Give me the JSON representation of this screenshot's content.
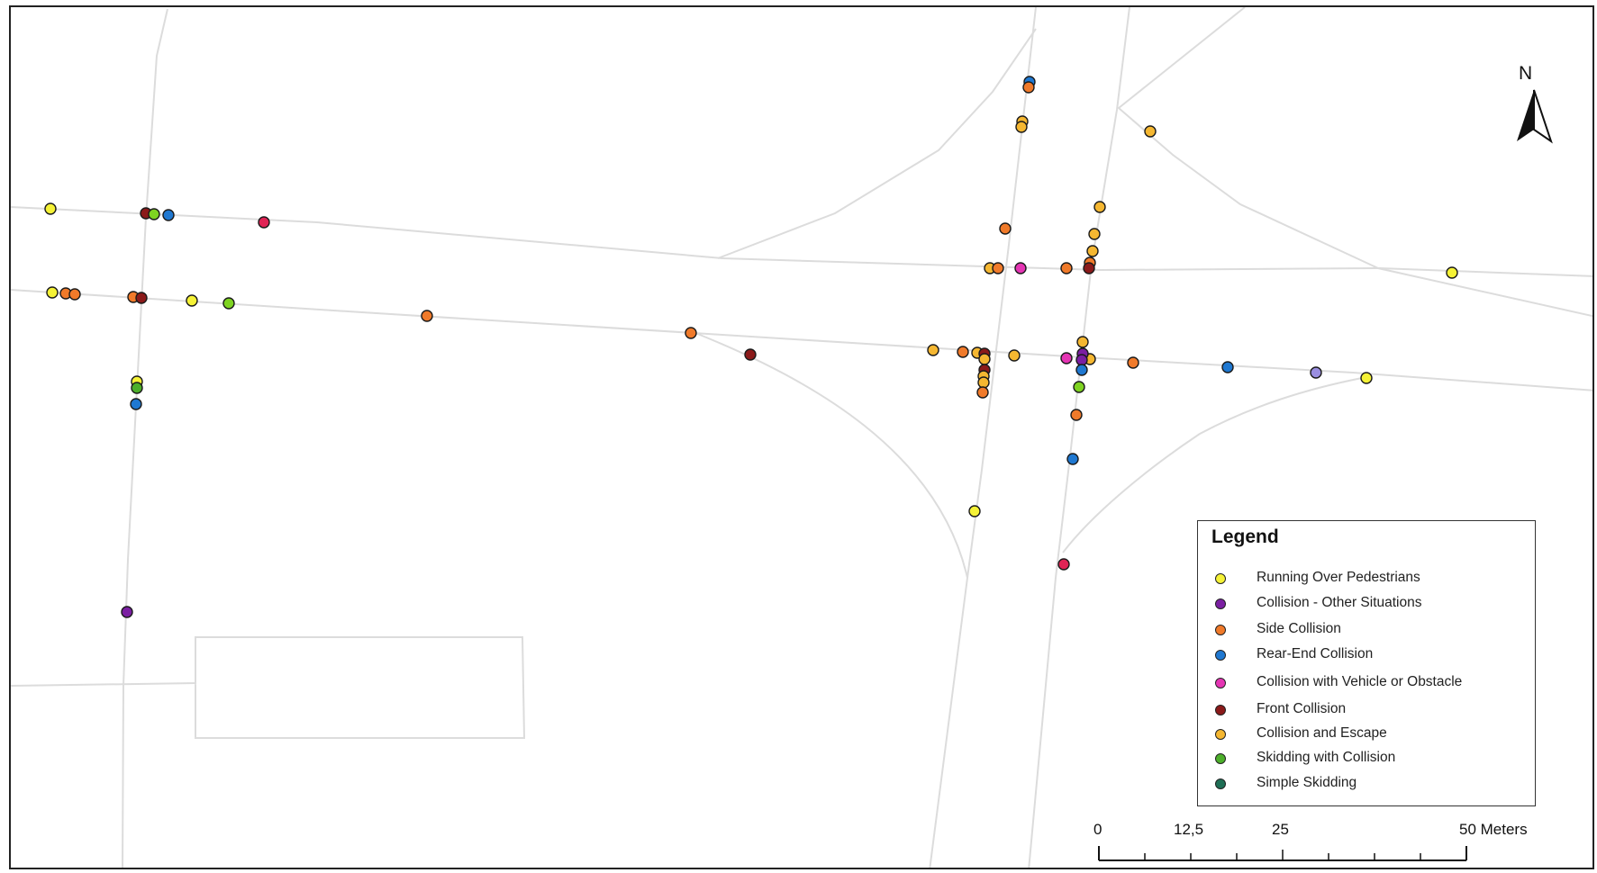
{
  "legend": {
    "title": "Legend",
    "items": [
      {
        "label": "Running Over Pedestrians",
        "color": "#f5f236"
      },
      {
        "label": "Collision - Other Situations",
        "color": "#7b1fa2"
      },
      {
        "label": "Side Collision",
        "color": "#f07a2a"
      },
      {
        "label": "Rear-End Collision",
        "color": "#1f78d1"
      },
      {
        "label": "Collision with Vehicle or Obstacle",
        "color": "#e535b4"
      },
      {
        "label": "Front Collision",
        "color": "#8b1a1a"
      },
      {
        "label": "Collision and Escape",
        "color": "#f5b731"
      },
      {
        "label": "Skidding with Collision",
        "color": "#4caf2a"
      },
      {
        "label": "Simple Skidding",
        "color": "#1e6e55"
      }
    ]
  },
  "north_arrow": {
    "label": "N"
  },
  "scale_bar": {
    "labels": [
      "0",
      "12,5",
      "25",
      "50 Meters"
    ]
  },
  "extra_colors": {
    "pink_red": "#e02455",
    "lavender": "#9a8ee0",
    "lime": "#7ed321"
  }
}
